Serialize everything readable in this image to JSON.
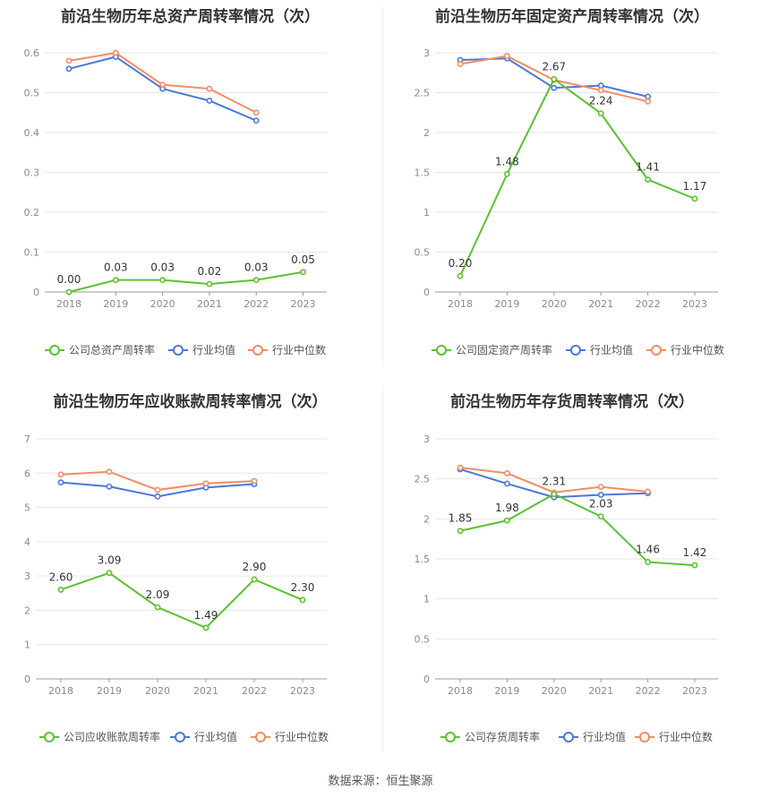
{
  "source": "数据来源：恒生聚源",
  "colors": {
    "company": "#5bc230",
    "avg": "#4a78d8",
    "median": "#f58b66",
    "grid": "#e6e6e6",
    "axis": "#8a8a8a"
  },
  "chart_data": [
    {
      "type": "line",
      "title": "前沿生物历年总资产周转率情况（次）",
      "categories": [
        "2018",
        "2019",
        "2020",
        "2021",
        "2022",
        "2023"
      ],
      "ylim": [
        0,
        0.6
      ],
      "yticks": [
        0,
        0.1,
        0.2,
        0.3,
        0.4,
        0.5,
        0.6
      ],
      "ytick_labels": [
        "0",
        "0.1",
        "0.2",
        "0.3",
        "0.4",
        "0.5",
        "0.6"
      ],
      "series": [
        {
          "name": "公司总资产周转率",
          "role": "company",
          "values": [
            0.0,
            0.03,
            0.03,
            0.02,
            0.03,
            0.05
          ],
          "labels": [
            "0.00",
            "0.03",
            "0.03",
            "0.02",
            "0.03",
            "0.05"
          ]
        },
        {
          "name": "行业均值",
          "role": "avg",
          "values": [
            0.56,
            0.59,
            0.51,
            0.48,
            0.43,
            null
          ]
        },
        {
          "name": "行业中位数",
          "role": "median",
          "values": [
            0.58,
            0.6,
            0.52,
            0.51,
            0.45,
            null
          ]
        }
      ]
    },
    {
      "type": "line",
      "title": "前沿生物历年固定资产周转率情况（次）",
      "categories": [
        "2018",
        "2019",
        "2020",
        "2021",
        "2022",
        "2023"
      ],
      "ylim": [
        0,
        3
      ],
      "yticks": [
        0,
        0.5,
        1,
        1.5,
        2,
        2.5,
        3
      ],
      "ytick_labels": [
        "0",
        "0.5",
        "1",
        "1.5",
        "2",
        "2.5",
        "3"
      ],
      "series": [
        {
          "name": "公司固定资产周转率",
          "role": "company",
          "values": [
            0.2,
            1.48,
            2.67,
            2.24,
            1.41,
            1.17
          ],
          "labels": [
            "0.20",
            "1.48",
            "2.67",
            "2.24",
            "1.41",
            "1.17"
          ]
        },
        {
          "name": "行业均值",
          "role": "avg",
          "values": [
            2.91,
            2.93,
            2.56,
            2.59,
            2.45,
            null
          ]
        },
        {
          "name": "行业中位数",
          "role": "median",
          "values": [
            2.86,
            2.96,
            2.66,
            2.53,
            2.39,
            null
          ]
        }
      ]
    },
    {
      "type": "line",
      "title": "前沿生物历年应收账款周转率情况（次）",
      "categories": [
        "2018",
        "2019",
        "2020",
        "2021",
        "2022",
        "2023"
      ],
      "ylim": [
        0,
        7
      ],
      "yticks": [
        0,
        1,
        2,
        3,
        4,
        5,
        6,
        7
      ],
      "ytick_labels": [
        "0",
        "1",
        "2",
        "3",
        "4",
        "5",
        "6",
        "7"
      ],
      "series": [
        {
          "name": "公司应收账款周转率",
          "role": "company",
          "values": [
            2.6,
            3.09,
            2.09,
            1.49,
            2.9,
            2.3
          ],
          "labels": [
            "2.60",
            "3.09",
            "2.09",
            "1.49",
            "2.90",
            "2.30"
          ]
        },
        {
          "name": "行业均值",
          "role": "avg",
          "values": [
            5.73,
            5.61,
            5.32,
            5.58,
            5.68,
            null
          ]
        },
        {
          "name": "行业中位数",
          "role": "median",
          "values": [
            5.96,
            6.04,
            5.51,
            5.7,
            5.77,
            null
          ]
        }
      ]
    },
    {
      "type": "line",
      "title": "前沿生物历年存货周转率情况（次）",
      "categories": [
        "2018",
        "2019",
        "2020",
        "2021",
        "2022",
        "2023"
      ],
      "ylim": [
        0,
        3
      ],
      "yticks": [
        0,
        0.5,
        1,
        1.5,
        2,
        2.5,
        3
      ],
      "ytick_labels": [
        "0",
        "0.5",
        "1",
        "1.5",
        "2",
        "2.5",
        "3"
      ],
      "series": [
        {
          "name": "公司存货周转率",
          "role": "company",
          "values": [
            1.85,
            1.98,
            2.31,
            2.03,
            1.46,
            1.42
          ],
          "labels": [
            "1.85",
            "1.98",
            "2.31",
            "2.03",
            "1.46",
            "1.42"
          ]
        },
        {
          "name": "行业均值",
          "role": "avg",
          "values": [
            2.62,
            2.44,
            2.27,
            2.3,
            2.32,
            null
          ]
        },
        {
          "name": "行业中位数",
          "role": "median",
          "values": [
            2.64,
            2.57,
            2.33,
            2.4,
            2.34,
            null
          ]
        }
      ]
    }
  ]
}
